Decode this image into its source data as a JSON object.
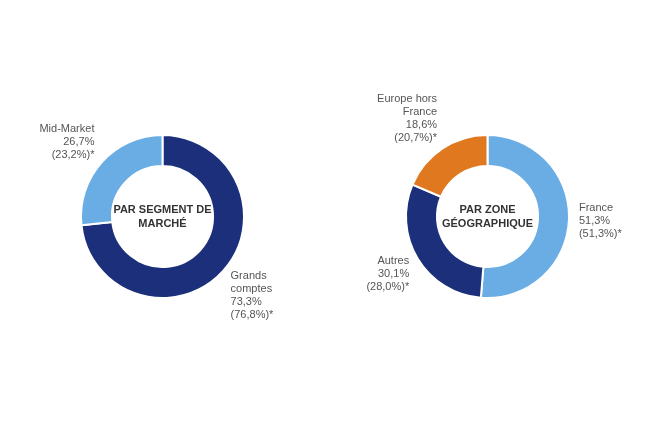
{
  "chart_data": [
    {
      "type": "pie",
      "title": "PAR SEGMENT DE\nMARCHÉ",
      "values": [
        73.3,
        26.7
      ],
      "colors": [
        "#1b2f7a",
        "#6aade4"
      ],
      "annotations": [
        "Grands\ncomptes\n73,3%\n(76,8%)*",
        "Mid-Market\n26,7%\n(23,2%)*"
      ]
    },
    {
      "type": "pie",
      "title": "PAR ZONE\nGÉOGRAPHIQUE",
      "values": [
        51.3,
        30.1,
        18.6
      ],
      "colors": [
        "#6aade4",
        "#1b2f7a",
        "#e07820"
      ],
      "annotations": [
        "France\n51,3%\n(51,3%)*",
        "Autres\n30,1%\n(28,0%)*",
        "Europe hors\nFrance\n18,6%\n(20,7%)*"
      ]
    }
  ]
}
